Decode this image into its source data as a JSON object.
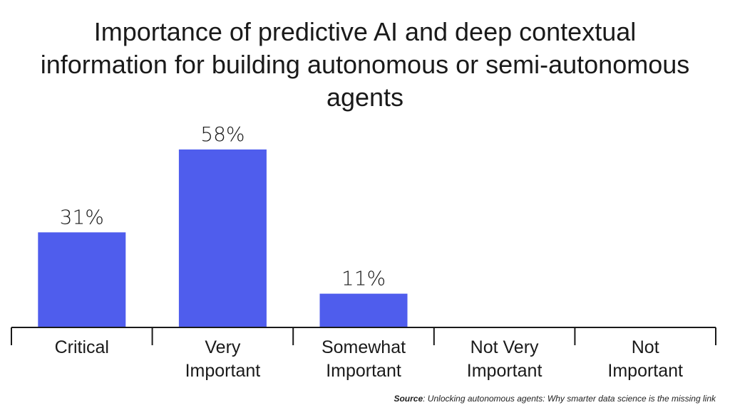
{
  "chart_data": {
    "type": "bar",
    "title": "Importance of predictive AI and deep contextual information for building autonomous or semi-autonomous agents",
    "categories": [
      "Critical",
      "Very Important",
      "Somewhat Important",
      "Not Very Important",
      "Not Important"
    ],
    "category_lines": [
      [
        "Critical"
      ],
      [
        "Very",
        "Important"
      ],
      [
        "Somewhat",
        "Important"
      ],
      [
        "Not Very",
        "Important"
      ],
      [
        "Not",
        "Important"
      ]
    ],
    "values": [
      31,
      58,
      11,
      0,
      0
    ],
    "data_labels": [
      "31%",
      "58%",
      "11%",
      "",
      ""
    ],
    "unit": "%",
    "xlabel": "",
    "ylabel": "",
    "ylim": [
      0,
      58
    ],
    "grid": false,
    "legend": "none",
    "bar_color": "#4f5ded",
    "axis_color": "#1a1a1a"
  },
  "source": {
    "label": "Source",
    "text": ": Unlocking autonomous agents: Why smarter data science is the missing link"
  }
}
